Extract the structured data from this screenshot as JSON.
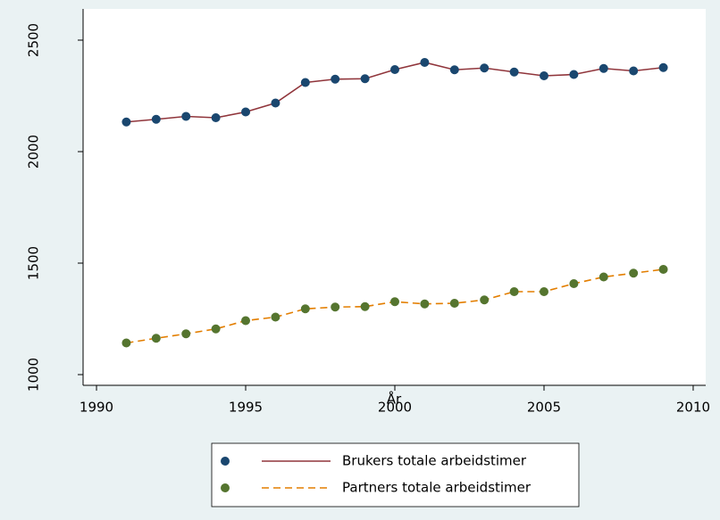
{
  "chart_data": {
    "type": "line",
    "x": [
      1991,
      1992,
      1993,
      1994,
      1995,
      1996,
      1997,
      1998,
      1999,
      2000,
      2001,
      2002,
      2003,
      2004,
      2005,
      2006,
      2007,
      2008,
      2009
    ],
    "x_label": "År",
    "series": [
      {
        "name": "Brukers totale arbeidstimer",
        "color": "#90353b",
        "marker_color": "#1a476f",
        "dash": false,
        "values": [
          2133,
          2145,
          2158,
          2152,
          2178,
          2218,
          2310,
          2325,
          2327,
          2368,
          2400,
          2367,
          2375,
          2357,
          2340,
          2346,
          2373,
          2362,
          2377
        ]
      },
      {
        "name": "Partners totale arbeidstimer",
        "color": "#e37e00",
        "marker_color": "#55752f",
        "dash": true,
        "values": [
          1142,
          1163,
          1183,
          1205,
          1242,
          1258,
          1295,
          1303,
          1305,
          1327,
          1317,
          1320,
          1335,
          1372,
          1372,
          1408,
          1438,
          1455,
          1472
        ]
      }
    ],
    "xlim": [
      1989.55,
      2010.42
    ],
    "xticks": [
      1990,
      1995,
      2000,
      2005,
      2010
    ],
    "ylim": [
      952,
      2640
    ],
    "yticks": [
      1000,
      1500,
      2000,
      2500
    ]
  }
}
